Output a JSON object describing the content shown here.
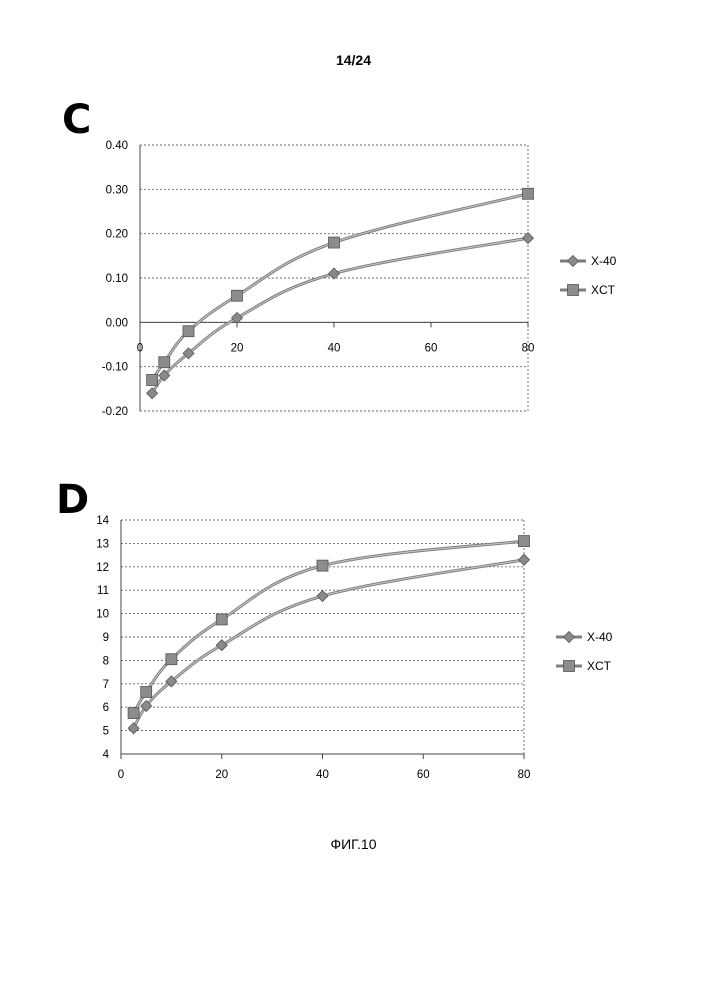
{
  "page": {
    "number": "14/24",
    "figure_label": "ФИГ.10"
  },
  "panels": [
    {
      "letter": "C"
    },
    {
      "letter": "D"
    }
  ],
  "chart_data": [
    {
      "type": "line",
      "title": "",
      "xlabel": "",
      "ylabel": "",
      "x_ticks": [
        0,
        20,
        40,
        60,
        80
      ],
      "y_ticks": [
        -0.2,
        -0.1,
        0.0,
        0.1,
        0.2,
        0.3,
        0.4
      ],
      "y_tick_labels": [
        "-0.20",
        "-0.10",
        "0.00",
        "0.10",
        "0.20",
        "0.30",
        "0.40"
      ],
      "xlim": [
        0,
        80
      ],
      "ylim": [
        -0.2,
        0.4
      ],
      "grid": "horizontal dashed",
      "legend_position": "right",
      "series": [
        {
          "name": "X-40",
          "marker": "diamond",
          "color": "#808080",
          "x": [
            2.5,
            5,
            10,
            20,
            40,
            80
          ],
          "y": [
            -0.16,
            -0.12,
            -0.07,
            0.01,
            0.11,
            0.19
          ]
        },
        {
          "name": "XCT",
          "marker": "square",
          "color": "#8c8c8c",
          "x": [
            2.5,
            5,
            10,
            20,
            40,
            80
          ],
          "y": [
            -0.13,
            -0.09,
            -0.02,
            0.06,
            0.18,
            0.29
          ]
        }
      ]
    },
    {
      "type": "line",
      "title": "",
      "xlabel": "",
      "ylabel": "",
      "x_ticks": [
        0,
        20,
        40,
        60,
        80
      ],
      "y_ticks": [
        4,
        5,
        6,
        7,
        8,
        9,
        10,
        11,
        12,
        13,
        14
      ],
      "y_tick_labels": [
        "4",
        "5",
        "6",
        "7",
        "8",
        "9",
        "10",
        "11",
        "12",
        "13",
        "14"
      ],
      "xlim": [
        0,
        80
      ],
      "ylim": [
        4,
        14
      ],
      "grid": "horizontal dashed",
      "legend_position": "right",
      "series": [
        {
          "name": "X-40",
          "marker": "diamond",
          "color": "#808080",
          "x": [
            2.5,
            5,
            10,
            20,
            40,
            80
          ],
          "y": [
            5.1,
            6.05,
            7.1,
            8.65,
            10.75,
            12.3
          ]
        },
        {
          "name": "XCT",
          "marker": "square",
          "color": "#8c8c8c",
          "x": [
            2.5,
            5,
            10,
            20,
            40,
            80
          ],
          "y": [
            5.75,
            6.65,
            8.05,
            9.75,
            12.05,
            13.1
          ]
        }
      ]
    }
  ]
}
